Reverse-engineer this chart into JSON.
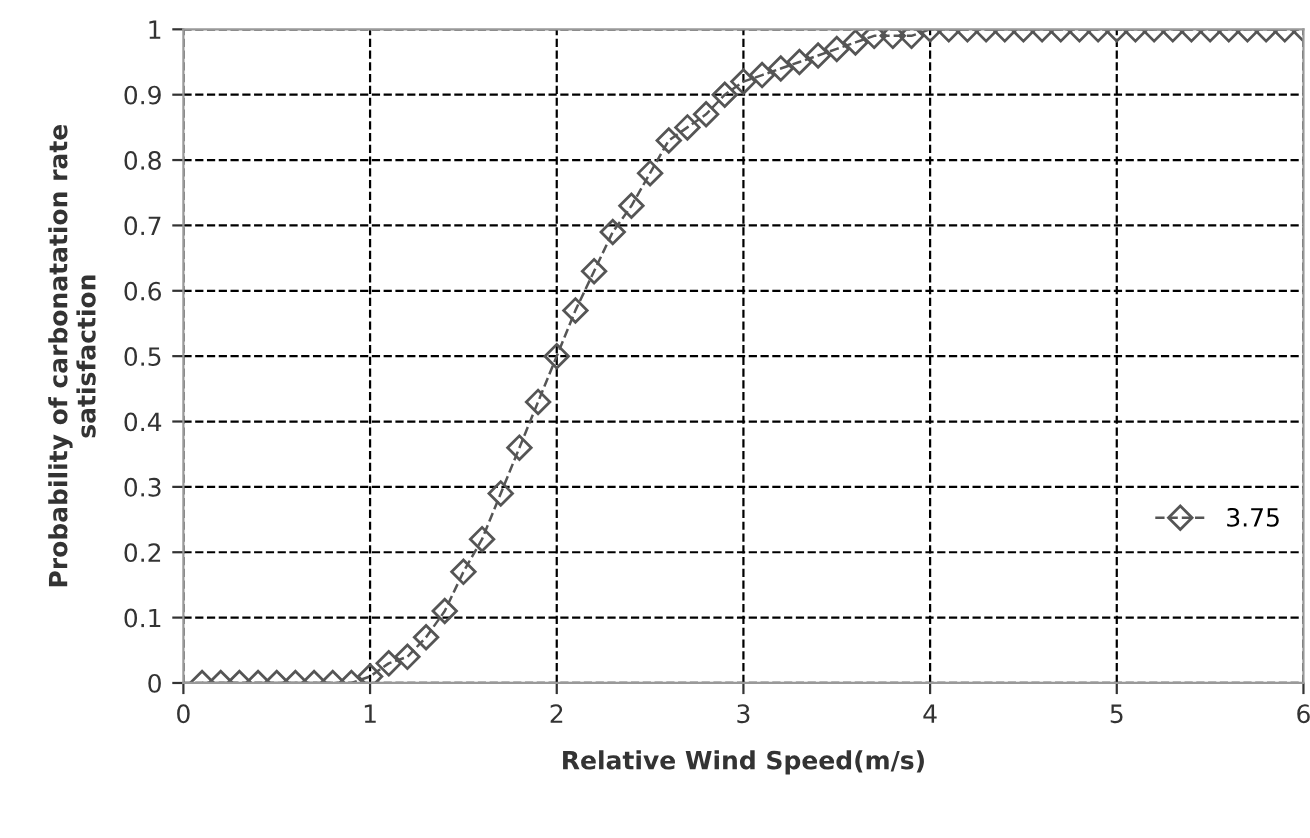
{
  "chart_data": {
    "type": "line",
    "xlabel": "Relative Wind Speed(m/s)",
    "ylabel": "Probability of carbonatation rate\nsatisfaction",
    "x": [
      0.1,
      0.2,
      0.3,
      0.4,
      0.5,
      0.6,
      0.7,
      0.8,
      0.9,
      1.0,
      1.1,
      1.2,
      1.3,
      1.4,
      1.5,
      1.6,
      1.7,
      1.8,
      1.9,
      2.0,
      2.1,
      2.2,
      2.3,
      2.4,
      2.5,
      2.6,
      2.7,
      2.8,
      2.9,
      3.0,
      3.1,
      3.2,
      3.3,
      3.4,
      3.5,
      3.6,
      3.7,
      3.8,
      3.9,
      4.0,
      4.1,
      4.2,
      4.3,
      4.4,
      4.5,
      4.6,
      4.7,
      4.8,
      4.9,
      5.0,
      5.1,
      5.2,
      5.3,
      5.4,
      5.5,
      5.6,
      5.7,
      5.8,
      5.9,
      6.0
    ],
    "series": [
      {
        "name": "3.75",
        "color": "#555555",
        "values": [
          0,
          0,
          0,
          0,
          0,
          0,
          0,
          0,
          0,
          0.01,
          0.03,
          0.04,
          0.07,
          0.11,
          0.17,
          0.22,
          0.29,
          0.36,
          0.43,
          0.5,
          0.57,
          0.63,
          0.69,
          0.73,
          0.78,
          0.83,
          0.85,
          0.87,
          0.9,
          0.92,
          0.93,
          0.94,
          0.95,
          0.96,
          0.97,
          0.98,
          0.99,
          0.99,
          0.99,
          1,
          1,
          1,
          1,
          1,
          1,
          1,
          1,
          1,
          1,
          1,
          1,
          1,
          1,
          1,
          1,
          1,
          1,
          1,
          1,
          1
        ]
      }
    ],
    "xlim": [
      0,
      6
    ],
    "xticks": [
      0,
      1,
      2,
      3,
      4,
      5,
      6
    ],
    "ylim": [
      0,
      1
    ],
    "yticks": [
      0,
      0.1,
      0.2,
      0.3,
      0.4,
      0.5,
      0.6,
      0.7,
      0.8,
      0.9,
      1
    ],
    "grid": true,
    "legend": "right",
    "marker": "diamond",
    "line_style": "dashed"
  }
}
